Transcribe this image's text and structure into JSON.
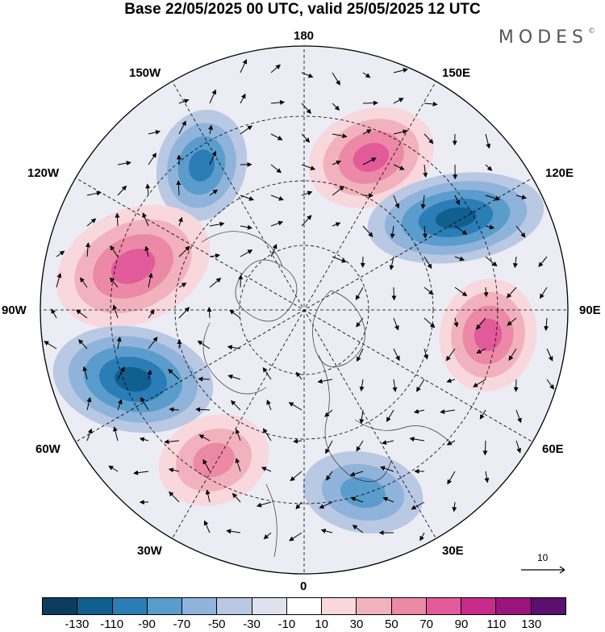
{
  "title": "Base 22/05/2025 00 UTC, valid 25/05/2025 12 UTC",
  "logo": {
    "text": "MODES",
    "mark": "©"
  },
  "longitude_labels": {
    "top": "180",
    "top_left": "150W",
    "top_right": "150E",
    "upper_left": "120W",
    "upper_right": "120E",
    "left": "90W",
    "right": "90E",
    "lower_left": "60W",
    "lower_right": "60E",
    "bottom_left": "30W",
    "bottom_right": "30E",
    "bottom": "0"
  },
  "reference_vector": {
    "label": "10"
  },
  "colorbar": {
    "colors": [
      "#0d3d5e",
      "#115f8f",
      "#2a7db5",
      "#5a9ccb",
      "#8fb3da",
      "#b9c8e3",
      "#e0e0ef",
      "#ffffff",
      "#f8d8dc",
      "#f2b2bd",
      "#ec89a6",
      "#e25a9a",
      "#c72b8c",
      "#99157c",
      "#5b0f6e"
    ],
    "ticks": [
      "-130",
      "-110",
      "-90",
      "-70",
      "-50",
      "-30",
      "-10",
      "10",
      "30",
      "50",
      "70",
      "90",
      "110",
      "130"
    ]
  },
  "anomalies": [
    {
      "name": "pos-150e",
      "sign": "+",
      "level": 3
    },
    {
      "name": "neg-120e",
      "sign": "-",
      "level": 4
    },
    {
      "name": "neg-150w",
      "sign": "-",
      "level": 3
    },
    {
      "name": "pos-120w",
      "sign": "+",
      "level": 3
    },
    {
      "name": "neg-60w",
      "sign": "-",
      "level": 4
    },
    {
      "name": "pos-90e",
      "sign": "+",
      "level": 3
    },
    {
      "name": "pos-45w",
      "sign": "+",
      "level": 2
    },
    {
      "name": "neg-30e",
      "sign": "-",
      "level": 2
    }
  ]
}
